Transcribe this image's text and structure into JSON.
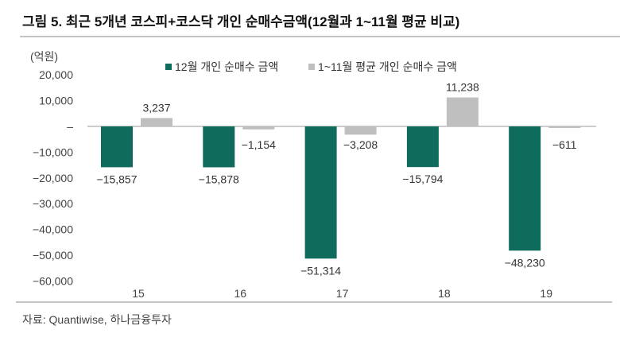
{
  "title": "그림 5. 최근 5개년 코스피+코스닥 개인 순매수금액(12월과 1~11월 평균 비교)",
  "source": "자료: Quantiwise, 하나금융투자",
  "colors": {
    "dec": "#0f6b5c",
    "avg": "#bfbfbf"
  },
  "chart_data": {
    "type": "bar",
    "title": "그림 5. 최근 5개년 코스피+코스닥 개인 순매수금액(12월과 1~11월 평균 비교)",
    "unit_label": "(억원)",
    "categories": [
      "15",
      "16",
      "17",
      "18",
      "19"
    ],
    "series": [
      {
        "name": "12월 개인 순매수 금액",
        "values": [
          -15857,
          -15878,
          -51314,
          -15794,
          -48230
        ],
        "labels": [
          "−15,857",
          "−15,878",
          "−51,314",
          "−15,794",
          "−48,230"
        ]
      },
      {
        "name": "1~11월 평균 개인 순매수 금액",
        "values": [
          3237,
          -1154,
          -3208,
          11238,
          -611
        ],
        "labels": [
          "3,237",
          "−1,154",
          "−3,208",
          "11,238",
          "−611"
        ]
      }
    ],
    "ylim": [
      -60000,
      20000
    ],
    "yticks": [
      20000,
      10000,
      0,
      -10000,
      -20000,
      -30000,
      -40000,
      -50000,
      -60000
    ],
    "ytick_labels": [
      "20,000",
      "10,000",
      "–",
      "−10,000",
      "−20,000",
      "−30,000",
      "−40,000",
      "−50,000",
      "−60,000"
    ],
    "legend": "top",
    "grid": false
  }
}
